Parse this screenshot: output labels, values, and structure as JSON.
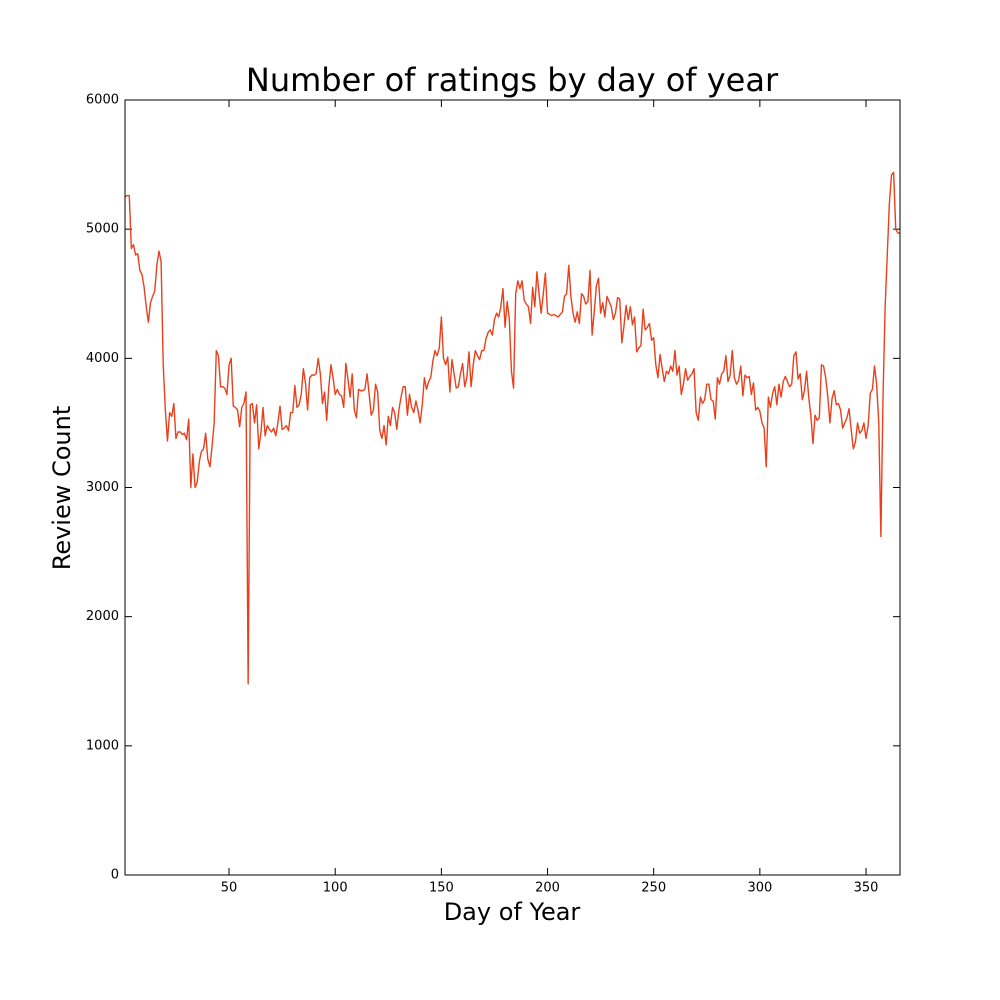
{
  "chart_data": {
    "type": "line",
    "title": "Number of ratings by day of year",
    "xlabel": "Day of Year",
    "ylabel": "Review Count",
    "xlim": [
      1,
      366
    ],
    "ylim": [
      0,
      6000
    ],
    "xticks": [
      50,
      100,
      150,
      200,
      250,
      300,
      350
    ],
    "yticks": [
      0,
      1000,
      2000,
      3000,
      4000,
      5000,
      6000
    ],
    "grid": false,
    "series": [
      {
        "color": "#e8401c",
        "x": [
          1,
          2,
          3,
          4,
          5,
          6,
          7,
          8,
          9,
          10,
          11,
          12,
          13,
          14,
          15,
          16,
          17,
          18,
          19,
          20,
          21,
          22,
          23,
          24,
          25,
          26,
          27,
          28,
          29,
          30,
          31,
          32,
          33,
          34,
          35,
          36,
          37,
          38,
          39,
          40,
          41,
          42,
          43,
          44,
          45,
          46,
          47,
          48,
          49,
          50,
          51,
          52,
          53,
          54,
          55,
          56,
          57,
          58,
          59,
          60,
          61,
          62,
          63,
          64,
          65,
          66,
          67,
          68,
          69,
          70,
          71,
          72,
          73,
          74,
          75,
          76,
          77,
          78,
          79,
          80,
          81,
          82,
          83,
          84,
          85,
          86,
          87,
          88,
          89,
          90,
          91,
          92,
          93,
          94,
          95,
          96,
          97,
          98,
          99,
          100,
          101,
          102,
          103,
          104,
          105,
          106,
          107,
          108,
          109,
          110,
          111,
          112,
          113,
          114,
          115,
          116,
          117,
          118,
          119,
          120,
          121,
          122,
          123,
          124,
          125,
          126,
          127,
          128,
          129,
          130,
          131,
          132,
          133,
          134,
          135,
          136,
          137,
          138,
          139,
          140,
          141,
          142,
          143,
          144,
          145,
          146,
          147,
          148,
          149,
          150,
          151,
          152,
          153,
          154,
          155,
          156,
          157,
          158,
          159,
          160,
          161,
          162,
          163,
          164,
          165,
          166,
          167,
          168,
          169,
          170,
          171,
          172,
          173,
          174,
          175,
          176,
          177,
          178,
          179,
          180,
          181,
          182,
          183,
          184,
          185,
          186,
          187,
          188,
          189,
          190,
          191,
          192,
          193,
          194,
          195,
          196,
          197,
          198,
          199,
          200,
          201,
          202,
          203,
          204,
          205,
          206,
          207,
          208,
          209,
          210,
          211,
          212,
          213,
          214,
          215,
          216,
          217,
          218,
          219,
          220,
          221,
          222,
          223,
          224,
          225,
          226,
          227,
          228,
          229,
          230,
          231,
          232,
          233,
          234,
          235,
          236,
          237,
          238,
          239,
          240,
          241,
          242,
          243,
          244,
          245,
          246,
          247,
          248,
          249,
          250,
          251,
          252,
          253,
          254,
          255,
          256,
          257,
          258,
          259,
          260,
          261,
          262,
          263,
          264,
          265,
          266,
          267,
          268,
          269,
          270,
          271,
          272,
          273,
          274,
          275,
          276,
          277,
          278,
          279,
          280,
          281,
          282,
          283,
          284,
          285,
          286,
          287,
          288,
          289,
          290,
          291,
          292,
          293,
          294,
          295,
          296,
          297,
          298,
          299,
          300,
          301,
          302,
          303,
          304,
          305,
          306,
          307,
          308,
          309,
          310,
          311,
          312,
          313,
          314,
          315,
          316,
          317,
          318,
          319,
          320,
          321,
          322,
          323,
          324,
          325,
          326,
          327,
          328,
          329,
          330,
          331,
          332,
          333,
          334,
          335,
          336,
          337,
          338,
          339,
          340,
          341,
          342,
          343,
          344,
          345,
          346,
          347,
          348,
          349,
          350,
          351,
          352,
          353,
          354,
          355,
          356,
          357,
          358,
          359,
          360,
          361,
          362,
          363,
          364,
          365,
          366
        ],
        "values": [
          5250,
          5260,
          5260,
          4850,
          4880,
          4800,
          4810,
          4680,
          4650,
          4550,
          4400,
          4280,
          4430,
          4480,
          4520,
          4720,
          4830,
          4750,
          3950,
          3600,
          3360,
          3580,
          3550,
          3650,
          3380,
          3430,
          3430,
          3410,
          3420,
          3370,
          3530,
          3000,
          3260,
          3000,
          3040,
          3200,
          3280,
          3300,
          3420,
          3220,
          3160,
          3320,
          3500,
          4060,
          4020,
          3780,
          3780,
          3770,
          3720,
          3950,
          4000,
          3630,
          3620,
          3600,
          3470,
          3620,
          3650,
          3740,
          1480,
          3640,
          3650,
          3500,
          3640,
          3300,
          3420,
          3620,
          3400,
          3480,
          3450,
          3430,
          3460,
          3400,
          3500,
          3630,
          3450,
          3460,
          3480,
          3440,
          3580,
          3580,
          3790,
          3620,
          3640,
          3720,
          3920,
          3810,
          3600,
          3850,
          3870,
          3870,
          3880,
          4000,
          3880,
          3650,
          3740,
          3520,
          3780,
          3950,
          3850,
          3720,
          3760,
          3720,
          3710,
          3620,
          3960,
          3840,
          3700,
          3880,
          3600,
          3540,
          3760,
          3750,
          3750,
          3760,
          3880,
          3720,
          3560,
          3600,
          3800,
          3740,
          3440,
          3380,
          3480,
          3330,
          3550,
          3480,
          3620,
          3580,
          3450,
          3600,
          3700,
          3780,
          3780,
          3560,
          3720,
          3620,
          3580,
          3670,
          3600,
          3500,
          3640,
          3850,
          3760,
          3820,
          3850,
          3980,
          4060,
          4020,
          4080,
          4320,
          4000,
          3950,
          4010,
          3740,
          3990,
          3880,
          3770,
          3780,
          3880,
          3960,
          3780,
          3850,
          4050,
          3780,
          3950,
          4060,
          4020,
          3990,
          4060,
          4060,
          4150,
          4200,
          4220,
          4180,
          4300,
          4350,
          4320,
          4400,
          4540,
          4240,
          4440,
          4300,
          3900,
          3770,
          4500,
          4600,
          4540,
          4600,
          4450,
          4420,
          4400,
          4270,
          4550,
          4400,
          4670,
          4500,
          4350,
          4500,
          4660,
          4350,
          4340,
          4330,
          4340,
          4330,
          4320,
          4340,
          4360,
          4480,
          4500,
          4720,
          4480,
          4350,
          4280,
          4360,
          4270,
          4500,
          4480,
          4420,
          4440,
          4680,
          4180,
          4360,
          4560,
          4620,
          4350,
          4430,
          4320,
          4480,
          4440,
          4400,
          4300,
          4350,
          4470,
          4460,
          4120,
          4250,
          4410,
          4300,
          4400,
          4260,
          4320,
          4050,
          4080,
          4100,
          4380,
          4220,
          4240,
          4270,
          4140,
          4160,
          3950,
          3850,
          4030,
          3920,
          3820,
          3900,
          3880,
          3940,
          3900,
          4060,
          3870,
          3940,
          3720,
          3800,
          3920,
          3830,
          3860,
          3880,
          3920,
          3580,
          3520,
          3700,
          3650,
          3680,
          3800,
          3800,
          3680,
          3670,
          3530,
          3850,
          3800,
          3880,
          3900,
          4020,
          3820,
          3870,
          4060,
          3850,
          3800,
          3830,
          3940,
          3710,
          3870,
          3850,
          3860,
          3720,
          3810,
          3600,
          3620,
          3590,
          3500,
          3460,
          3160,
          3700,
          3620,
          3730,
          3780,
          3640,
          3800,
          3700,
          3820,
          3860,
          3820,
          3780,
          3800,
          4020,
          4050,
          3840,
          3880,
          3680,
          3750,
          3900,
          3700,
          3560,
          3340,
          3560,
          3520,
          3540,
          3950,
          3940,
          3850,
          3700,
          3500,
          3690,
          3750,
          3640,
          3650,
          3600,
          3460,
          3500,
          3540,
          3610,
          3450,
          3300,
          3350,
          3500,
          3420,
          3440,
          3500,
          3380,
          3480,
          3730,
          3760,
          3940,
          3800,
          3500,
          2620,
          3700,
          4400,
          4800,
          5200,
          5420,
          5440,
          5000,
          4970,
          4970
        ]
      }
    ]
  }
}
